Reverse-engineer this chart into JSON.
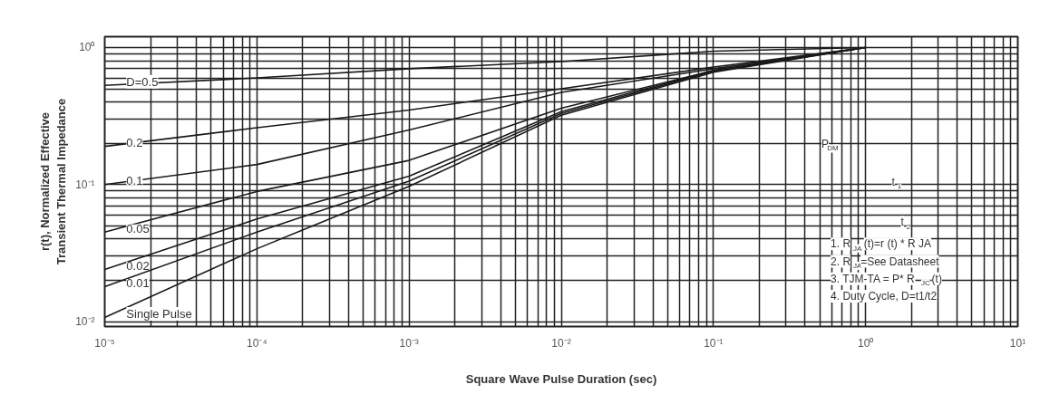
{
  "chart_data": {
    "type": "line",
    "xlabel": "Square Wave Pulse Duration (sec)",
    "ylabel": "r(t), Normalized Effective\nTransient Thermal Impedance",
    "log": "xy",
    "grid": true,
    "marker": "none",
    "line_style": "solid",
    "xlim": [
      1e-05,
      10
    ],
    "ylim": [
      0.0092,
      1.2
    ],
    "xticks": [
      {
        "value": 1e-05,
        "label": "10⁻⁵"
      },
      {
        "value": 0.0001,
        "label": "10⁻⁴"
      },
      {
        "value": 0.001,
        "label": "10⁻³"
      },
      {
        "value": 0.01,
        "label": "10⁻²"
      },
      {
        "value": 0.1,
        "label": "10⁻¹"
      },
      {
        "value": 1,
        "label": "10⁰"
      },
      {
        "value": 10,
        "label": "10¹"
      }
    ],
    "yticks": [
      {
        "value": 0.01,
        "label": "10⁻²"
      },
      {
        "value": 0.1,
        "label": "10⁻¹"
      },
      {
        "value": 1,
        "label": "10⁰"
      }
    ],
    "x": [
      1e-05,
      0.0001,
      0.001,
      0.01,
      0.1,
      1
    ],
    "series": [
      {
        "name": "D=0.5",
        "color": "#1a1a1a",
        "values": [
          0.53,
          0.6,
          0.7,
          0.79,
          0.94,
          1.0
        ]
      },
      {
        "name": "0.2",
        "color": "#1a1a1a",
        "values": [
          0.19,
          0.26,
          0.35,
          0.5,
          0.72,
          1.0
        ]
      },
      {
        "name": "0.1",
        "color": "#1a1a1a",
        "values": [
          0.1,
          0.14,
          0.25,
          0.47,
          0.7,
          1.0
        ]
      },
      {
        "name": "0.05",
        "color": "#1a1a1a",
        "values": [
          0.045,
          0.089,
          0.15,
          0.36,
          0.68,
          1.0
        ]
      },
      {
        "name": "0.02",
        "color": "#1a1a1a",
        "values": [
          0.024,
          0.056,
          0.115,
          0.34,
          0.68,
          1.0
        ]
      },
      {
        "name": "0.01",
        "color": "#1a1a1a",
        "values": [
          0.018,
          0.045,
          0.106,
          0.33,
          0.67,
          1.0
        ]
      },
      {
        "name": "Single Pulse",
        "color": "#1a1a1a",
        "values": [
          0.0107,
          0.034,
          0.097,
          0.32,
          0.66,
          1.0
        ]
      }
    ],
    "annotations": [
      "P$_{DM}$",
      "t$_{1}$",
      "t$_{2}$",
      "1. R$_{JA}$ (t)=r (t) * R JA",
      "2. R$_{JA}$=See Datasheet",
      "3. TJM-TA = P* R$_{JC}$ (t)",
      "4. Duty Cycle, D=t1/t2"
    ]
  }
}
